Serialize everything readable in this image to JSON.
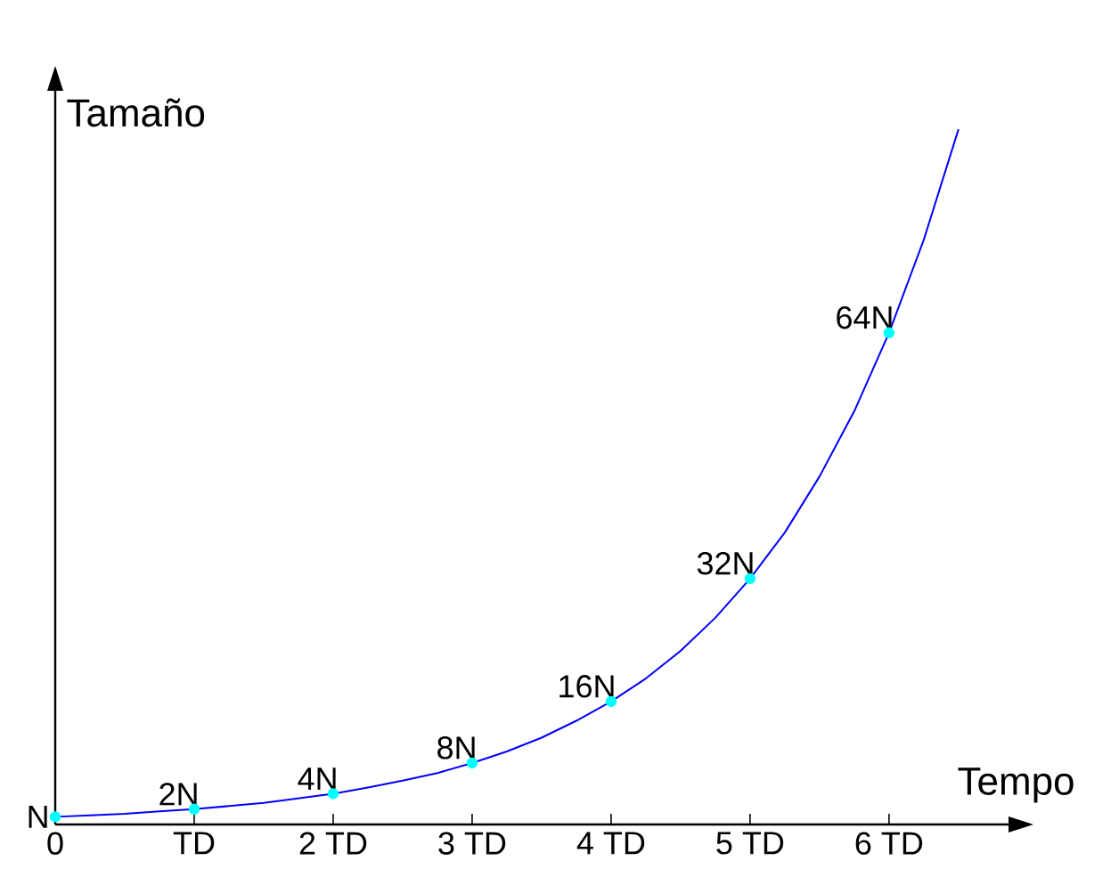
{
  "chart_data": {
    "type": "line",
    "xlabel": "Tempo",
    "ylabel": "Tamaño",
    "xlim": [
      0,
      6.86
    ],
    "ylim": [
      0,
      95.5
    ],
    "xticks": [
      {
        "value": 0,
        "label": "0"
      },
      {
        "value": 1,
        "label": "TD"
      },
      {
        "value": 2,
        "label": "2 TD"
      },
      {
        "value": 3,
        "label": "3 TD"
      },
      {
        "value": 4,
        "label": "4 TD"
      },
      {
        "value": 5,
        "label": "5 TD"
      },
      {
        "value": 6,
        "label": "6 TD"
      }
    ],
    "series": [
      {
        "color": "#0000ff",
        "marker": "none",
        "x": [
          0,
          0.25,
          0.5,
          0.75,
          1,
          1.25,
          1.5,
          1.75,
          2,
          2.25,
          2.5,
          2.75,
          3,
          3.25,
          3.5,
          3.75,
          4,
          4.25,
          4.5,
          4.75,
          5,
          5.25,
          5.5,
          5.75,
          6,
          6.25,
          6.5
        ],
        "values": [
          1,
          1.2,
          1.4,
          1.7,
          2,
          2.4,
          2.8,
          3.4,
          4,
          4.8,
          5.7,
          6.7,
          8,
          9.5,
          11.3,
          13.5,
          16,
          19,
          22.6,
          26.9,
          32,
          38,
          45.3,
          53.8,
          64,
          76.1,
          90.5
        ]
      },
      {
        "type": "scatter",
        "color": "#00ffff",
        "marker": "circle",
        "x": [
          0,
          1,
          2,
          3,
          4,
          5,
          6
        ],
        "values": [
          1,
          2,
          4,
          8,
          16,
          32,
          64
        ],
        "value_labels": [
          "N",
          "2N",
          "4N",
          "8N",
          "16N",
          "32N",
          "64N"
        ]
      }
    ]
  }
}
